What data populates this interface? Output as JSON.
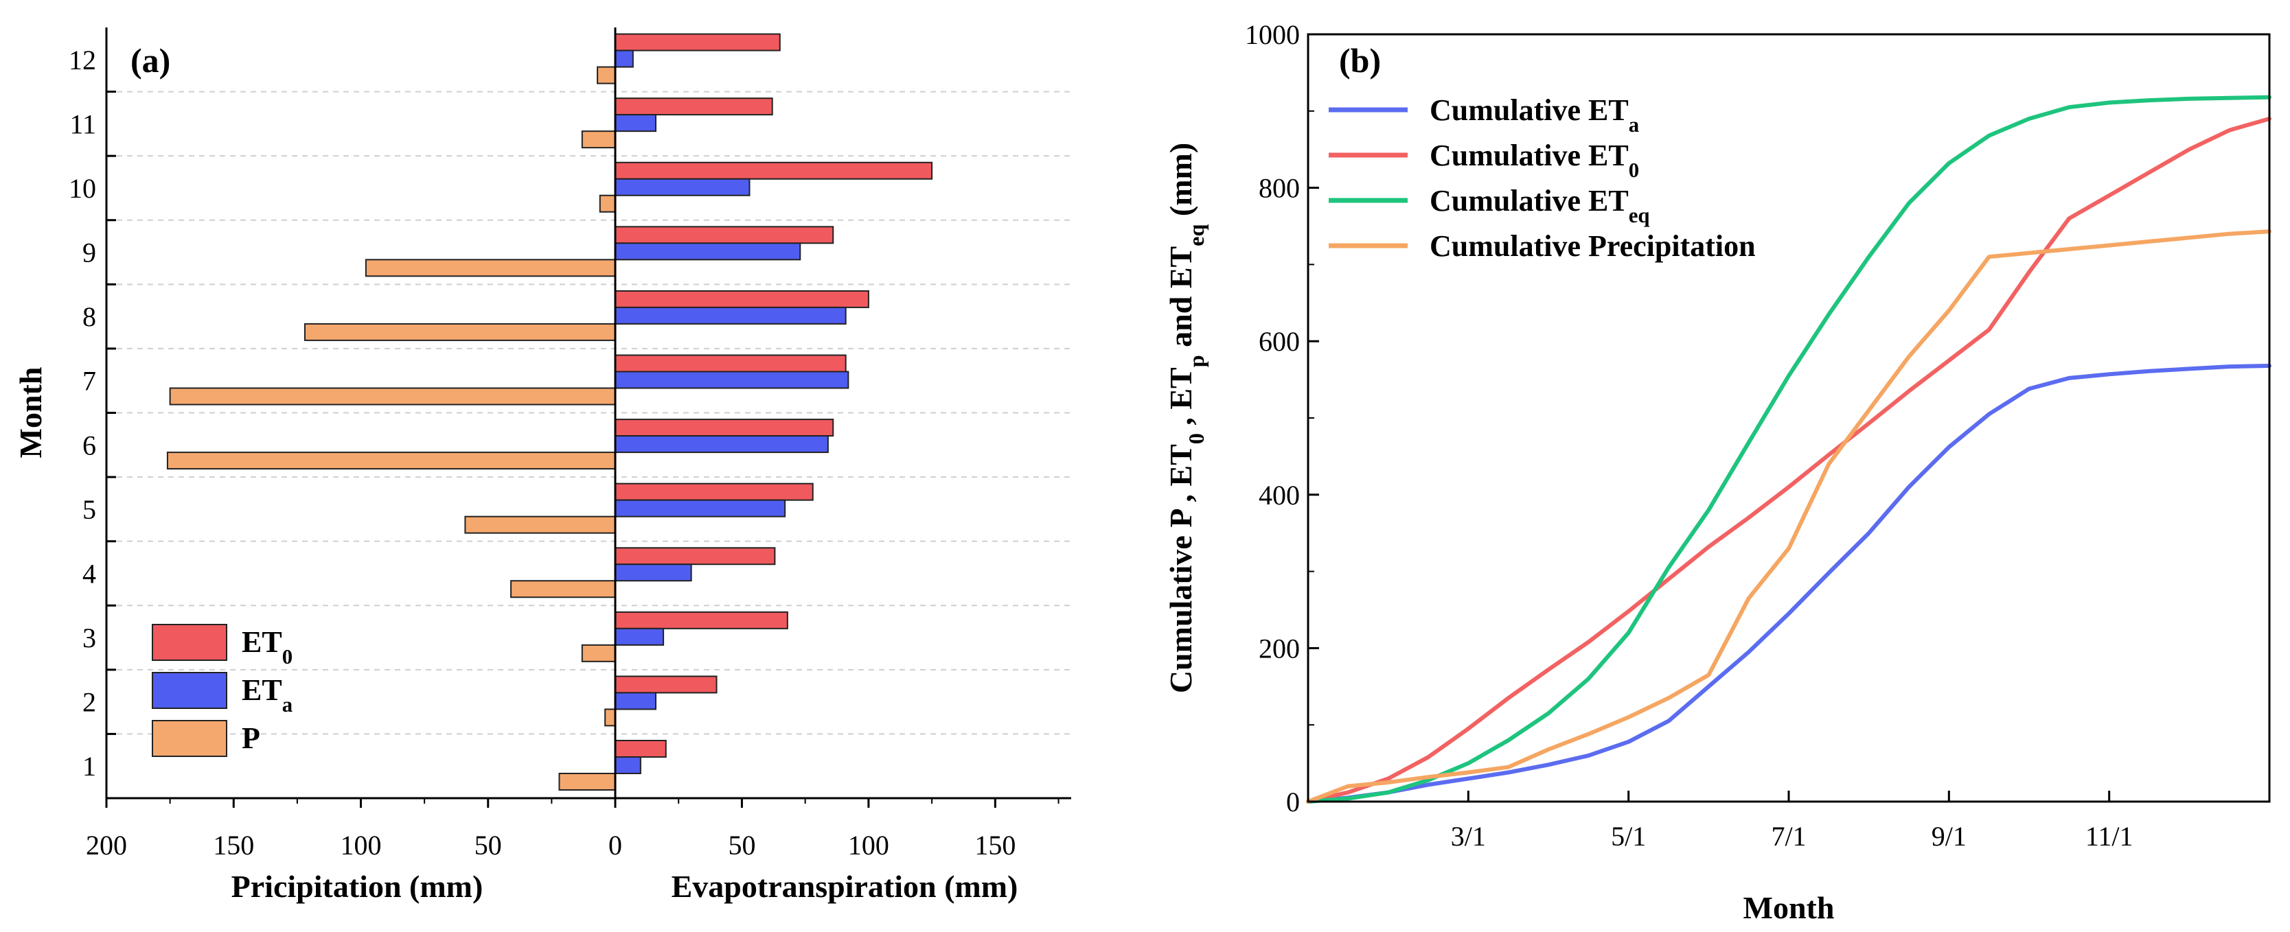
{
  "chart_data": [
    {
      "type": "bar",
      "orientation": "horizontal",
      "panel_label": "(a)",
      "ylabel": "Month",
      "xlabel_left": "Pricipitation (mm)",
      "xlabel_right": "Evapotranspiration (mm)",
      "categories": [
        "1",
        "2",
        "3",
        "4",
        "5",
        "6",
        "7",
        "8",
        "9",
        "10",
        "11",
        "12"
      ],
      "x_tick_labels_left": [
        "200",
        "150",
        "100",
        "50",
        "0"
      ],
      "x_tick_labels_right": [
        "50",
        "100",
        "150"
      ],
      "xlim_left": [
        200,
        0
      ],
      "xlim_right": [
        0,
        180
      ],
      "grid": "horizontal dashed",
      "legend_position": "bottom-left",
      "series": [
        {
          "name": "ET0",
          "label_main": "ET",
          "label_sub": "0",
          "side": "right",
          "color": "#f05a5e",
          "values": [
            20,
            40,
            68,
            63,
            78,
            86,
            91,
            100,
            86,
            125,
            62,
            65
          ]
        },
        {
          "name": "ETa",
          "label_main": "ET",
          "label_sub": "a",
          "side": "right",
          "color": "#4f5ef0",
          "values": [
            10,
            16,
            19,
            30,
            67,
            84,
            92,
            91,
            73,
            53,
            16,
            7
          ]
        },
        {
          "name": "P",
          "label_main": "P",
          "label_sub": "",
          "side": "left",
          "color": "#f5a86e",
          "values": [
            22,
            4,
            13,
            41,
            59,
            176,
            175,
            122,
            98,
            6,
            13,
            7
          ]
        }
      ]
    },
    {
      "type": "line",
      "panel_label": "(b)",
      "xlabel": "Month",
      "ylabel_parts": [
        {
          "t": "Cumulative P , ET",
          "s": ""
        },
        {
          "t": "0",
          "s": "sub"
        },
        {
          "t": " , ET",
          "s": ""
        },
        {
          "t": "p",
          "s": "sub"
        },
        {
          "t": " and ET",
          "s": ""
        },
        {
          "t": "eq",
          "s": "sub"
        },
        {
          "t": " (mm)",
          "s": ""
        }
      ],
      "xlim": [
        0,
        12
      ],
      "ylim": [
        0,
        1000
      ],
      "x_ticks": [
        2,
        4,
        6,
        8,
        10
      ],
      "x_tick_labels": [
        "3/1",
        "5/1",
        "7/1",
        "9/1",
        "11/1"
      ],
      "y_ticks": [
        0,
        200,
        400,
        600,
        800,
        1000
      ],
      "y_tick_labels": [
        "0",
        "200",
        "400",
        "600",
        "800",
        "1000"
      ],
      "legend_position": "top-left",
      "series": [
        {
          "name": "Cumulative ETa",
          "label_main": "Cumulative ET",
          "label_sub": "a",
          "color": "#5b6cf0",
          "x": [
            0,
            0.5,
            1,
            1.5,
            2,
            2.5,
            3,
            3.5,
            4,
            4.5,
            5,
            5.5,
            6,
            6.5,
            7,
            7.5,
            8,
            8.5,
            9,
            9.5,
            10,
            10.5,
            11,
            11.5,
            12
          ],
          "y": [
            0,
            5,
            12,
            22,
            30,
            38,
            48,
            60,
            78,
            105,
            150,
            195,
            245,
            298,
            350,
            410,
            462,
            505,
            538,
            552,
            557,
            561,
            564,
            567,
            568
          ]
        },
        {
          "name": "Cumulative ET0",
          "label_main": "Cumulative ET",
          "label_sub": "0",
          "color": "#f26262",
          "x": [
            0,
            0.5,
            1,
            1.5,
            2,
            2.5,
            3,
            3.5,
            4,
            4.5,
            5,
            5.5,
            6,
            6.5,
            7,
            7.5,
            8,
            8.5,
            9,
            9.5,
            10,
            10.5,
            11,
            11.5,
            12
          ],
          "y": [
            0,
            12,
            30,
            58,
            95,
            135,
            172,
            208,
            248,
            290,
            332,
            370,
            410,
            452,
            493,
            535,
            575,
            615,
            690,
            760,
            790,
            820,
            850,
            875,
            890
          ]
        },
        {
          "name": "Cumulative ETeq",
          "label_main": "Cumulative ET",
          "label_sub": "eq",
          "color": "#1ec47e",
          "x": [
            0,
            0.5,
            1,
            1.5,
            2,
            2.5,
            3,
            3.5,
            4,
            4.5,
            5,
            5.5,
            6,
            6.5,
            7,
            7.5,
            8,
            8.5,
            9,
            9.5,
            10,
            10.5,
            11,
            11.5,
            12
          ],
          "y": [
            0,
            4,
            12,
            28,
            50,
            80,
            115,
            160,
            220,
            305,
            380,
            468,
            555,
            635,
            710,
            780,
            832,
            868,
            890,
            905,
            911,
            914,
            916,
            917,
            918
          ]
        },
        {
          "name": "Cumulative Precipitation",
          "label_main": "Cumulative Precipitation",
          "label_sub": "",
          "color": "#f5a662",
          "x": [
            0,
            0.5,
            1,
            1.5,
            2,
            2.5,
            3,
            3.5,
            4,
            4.5,
            5,
            5.5,
            6,
            6.5,
            7,
            7.5,
            8,
            8.5,
            9,
            9.5,
            10,
            10.5,
            11,
            11.5,
            12
          ],
          "y": [
            0,
            20,
            25,
            32,
            38,
            45,
            68,
            88,
            110,
            135,
            165,
            265,
            330,
            440,
            510,
            580,
            640,
            710,
            715,
            720,
            725,
            730,
            735,
            740,
            743
          ]
        }
      ]
    }
  ]
}
